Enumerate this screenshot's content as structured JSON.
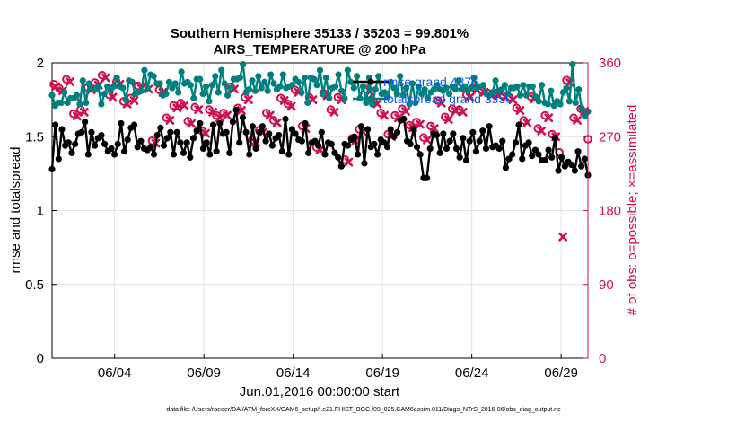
{
  "chart_data": {
    "type": "line",
    "title": "Southern Hemisphere 35133 / 35203 = 99.801%",
    "subtitle": "AIRS_TEMPERATURE @ 200 hPa",
    "xlabel": "Jun.01,2016 00:00:00 start",
    "ylabel": "rmse and totalspread",
    "ylabel_right": "# of obs: o=possible; ×=assimilated",
    "xlim": [
      0,
      30
    ],
    "ylim": [
      0,
      2
    ],
    "ylim_right": [
      0,
      360
    ],
    "x_ticks": [
      {
        "x": 3.5,
        "label": "06/04"
      },
      {
        "x": 8.5,
        "label": "06/09"
      },
      {
        "x": 13.5,
        "label": "06/14"
      },
      {
        "x": 18.5,
        "label": "06/19"
      },
      {
        "x": 23.5,
        "label": "06/24"
      },
      {
        "x": 28.5,
        "label": "06/29"
      }
    ],
    "y_ticks": [
      "0",
      "0.5",
      "1",
      "1.5",
      "2"
    ],
    "y_ticks_right": [
      "0",
      "90",
      "180",
      "270",
      "360"
    ],
    "grid": true,
    "legend_position": "top-right",
    "series": [
      {
        "name": "rmse grand   4375",
        "color": "#000000",
        "axis": "left",
        "marker": "circle",
        "values": [
          1.28,
          1.58,
          1.35,
          1.55,
          1.44,
          1.46,
          1.39,
          1.45,
          1.52,
          1.53,
          1.6,
          1.38,
          1.53,
          1.44,
          1.49,
          1.51,
          1.45,
          1.4,
          1.42,
          1.38,
          1.45,
          1.59,
          1.4,
          1.48,
          1.56,
          1.58,
          1.43,
          1.47,
          1.42,
          1.41,
          1.43,
          1.38,
          1.51,
          1.56,
          1.44,
          1.49,
          1.53,
          1.38,
          1.53,
          1.46,
          1.39,
          1.46,
          1.36,
          1.49,
          1.54,
          1.59,
          1.42,
          1.46,
          1.38,
          1.58,
          1.4,
          1.59,
          1.52,
          1.53,
          1.39,
          1.6,
          1.68,
          1.46,
          1.63,
          1.53,
          1.38,
          1.57,
          1.42,
          1.53,
          1.57,
          1.47,
          1.52,
          1.44,
          1.49,
          1.51,
          1.4,
          1.62,
          1.38,
          1.55,
          1.52,
          1.48,
          1.47,
          1.59,
          1.39,
          1.46,
          1.47,
          1.44,
          1.53,
          1.38,
          1.46,
          1.45,
          1.39,
          1.36,
          1.3,
          1.45,
          1.44,
          1.48,
          1.5,
          1.38,
          1.57,
          1.32,
          1.55,
          1.43,
          1.45,
          1.38,
          1.48,
          1.46,
          1.43,
          1.55,
          1.5,
          1.53,
          1.61,
          1.62,
          1.47,
          1.45,
          1.55,
          1.43,
          1.38,
          1.22,
          1.22,
          1.42,
          1.52,
          1.51,
          1.39,
          1.52,
          1.42,
          1.47,
          1.52,
          1.42,
          1.36,
          1.49,
          1.34,
          1.47,
          1.53,
          1.4,
          1.47,
          1.54,
          1.42,
          1.57,
          1.43,
          1.44,
          1.42,
          1.47,
          1.29,
          1.35,
          1.38,
          1.46,
          1.58,
          1.35,
          1.44,
          1.46,
          1.37,
          1.41,
          1.38,
          1.34,
          1.34,
          1.41,
          1.36,
          1.49,
          1.27,
          1.36,
          1.3,
          1.33,
          1.31,
          1.27,
          1.4,
          1.3,
          1.35,
          1.24
        ]
      },
      {
        "name": "totalspread grand   3350",
        "color": "#007f7f",
        "axis": "left",
        "marker": "circle",
        "values": [
          1.78,
          1.71,
          1.73,
          1.73,
          1.8,
          1.73,
          1.76,
          1.76,
          1.78,
          1.72,
          1.88,
          1.73,
          1.86,
          1.82,
          1.82,
          1.84,
          1.72,
          1.79,
          1.84,
          1.81,
          1.84,
          1.9,
          1.84,
          1.83,
          1.75,
          1.88,
          1.87,
          1.79,
          1.8,
          1.81,
          1.95,
          1.83,
          1.92,
          1.91,
          1.86,
          1.86,
          1.78,
          1.79,
          1.87,
          1.83,
          1.86,
          1.8,
          1.94,
          1.86,
          1.87,
          1.85,
          1.76,
          1.89,
          1.89,
          1.79,
          1.84,
          1.74,
          1.85,
          1.91,
          1.8,
          1.95,
          1.86,
          1.78,
          1.83,
          1.89,
          1.89,
          1.9,
          1.99,
          1.8,
          1.82,
          1.88,
          1.81,
          1.91,
          1.83,
          1.87,
          1.81,
          1.92,
          1.86,
          1.82,
          1.84,
          1.92,
          1.83,
          1.84,
          1.85,
          1.89,
          1.87,
          1.8,
          1.9,
          1.73,
          1.9,
          1.89,
          1.85,
          1.95,
          1.79,
          1.9,
          1.76,
          1.83,
          1.84,
          1.92,
          1.81,
          1.76,
          1.95,
          1.87,
          1.83,
          1.91,
          1.76,
          1.84,
          1.73,
          1.9,
          1.72,
          1.82,
          1.91,
          1.79,
          1.8,
          1.77,
          1.87,
          1.83,
          1.79,
          1.91,
          1.78,
          1.83,
          1.72,
          1.86,
          1.73,
          1.84,
          1.79,
          1.82,
          1.76,
          1.8,
          1.82,
          1.85,
          1.82,
          1.81,
          1.83,
          1.79,
          1.84,
          1.82,
          1.88,
          1.82,
          1.84,
          1.81,
          1.83,
          1.9,
          1.83,
          1.84,
          1.85,
          1.79,
          1.78,
          1.8,
          1.88,
          1.81,
          1.82,
          1.85,
          1.79,
          1.83,
          1.83,
          1.84,
          1.78,
          1.85,
          1.78,
          1.84,
          1.84,
          1.77,
          1.74,
          1.85,
          1.73,
          1.72,
          1.81,
          1.71,
          1.74,
          1.72,
          1.8,
          1.83,
          1.74,
          1.99,
          1.73,
          1.82,
          1.69,
          1.64,
          1.67
        ]
      },
      {
        "name": "possible",
        "color": "#d0104c",
        "axis": "right",
        "marker": "o",
        "x": [
          0.1,
          0.4,
          0.8,
          1.2,
          1.6,
          2.0,
          2.4,
          2.8,
          3.2,
          3.6,
          4.0,
          4.4,
          4.8,
          5.2,
          5.6,
          6.0,
          6.4,
          6.8,
          7.2,
          7.6,
          8.0,
          8.4,
          8.8,
          9.2,
          9.6,
          10.0,
          10.4,
          10.8,
          11.2,
          11.6,
          12.0,
          12.4,
          12.8,
          13.2,
          13.6,
          14.0,
          14.4,
          14.8,
          15.2,
          15.6,
          16.0,
          16.4,
          16.8,
          17.2,
          17.6,
          18.0,
          18.4,
          18.8,
          19.2,
          19.6,
          20.0,
          20.4,
          20.8,
          21.2,
          21.6,
          22.0,
          22.4,
          22.8,
          23.2,
          23.6,
          24.0,
          24.4,
          24.8,
          25.2,
          25.6,
          26.0,
          26.4,
          26.8,
          27.2,
          27.6,
          28.0,
          28.4,
          28.8,
          29.2,
          29.6,
          30.0
        ],
        "values": [
          334,
          329,
          340,
          298,
          303,
          330,
          336,
          345,
          321,
          337,
          313,
          317,
          332,
          331,
          265,
          327,
          293,
          308,
          311,
          289,
          306,
          277,
          303,
          296,
          299,
          331,
          305,
          318,
          266,
          278,
          299,
          290,
          317,
          310,
          327,
          283,
          318,
          257,
          323,
          303,
          318,
          242,
          268,
          279,
          328,
          313,
          299,
          273,
          296,
          304,
          284,
          288,
          269,
          283,
          314,
          294,
          304,
          303,
          321,
          330,
          327,
          323,
          323,
          321,
          318,
          305,
          290,
          319,
          280,
          296,
          273,
          251,
          339,
          293,
          304,
          267
        ]
      },
      {
        "name": "assimilated",
        "color": "#d0104c",
        "axis": "right",
        "marker": "x",
        "x": [
          0.2,
          0.6,
          1.0,
          1.4,
          1.8,
          2.2,
          2.6,
          3.0,
          3.4,
          3.8,
          4.2,
          4.6,
          5.0,
          5.4,
          5.8,
          6.2,
          6.6,
          7.0,
          7.4,
          7.8,
          8.2,
          8.6,
          9.0,
          9.4,
          9.8,
          10.2,
          10.6,
          11.0,
          11.4,
          11.8,
          12.2,
          12.6,
          13.0,
          13.4,
          13.8,
          14.2,
          14.6,
          15.0,
          15.4,
          15.8,
          16.2,
          16.6,
          17.0,
          17.4,
          17.8,
          18.2,
          18.6,
          19.0,
          19.4,
          19.8,
          20.2,
          20.6,
          21.0,
          21.4,
          21.8,
          22.2,
          22.6,
          23.0,
          23.4,
          23.8,
          24.2,
          24.6,
          25.0,
          25.4,
          25.8,
          26.2,
          26.6,
          27.0,
          27.4,
          27.8,
          28.2,
          28.6,
          29.0,
          29.4,
          29.8
        ],
        "values": [
          331,
          326,
          337,
          295,
          300,
          327,
          333,
          342,
          318,
          334,
          310,
          314,
          329,
          328,
          262,
          324,
          290,
          305,
          308,
          286,
          303,
          274,
          300,
          293,
          296,
          328,
          302,
          315,
          263,
          275,
          296,
          287,
          314,
          307,
          324,
          280,
          315,
          254,
          320,
          300,
          315,
          239,
          265,
          276,
          325,
          310,
          296,
          270,
          293,
          301,
          281,
          285,
          266,
          280,
          311,
          291,
          301,
          300,
          318,
          327,
          324,
          320,
          320,
          318,
          315,
          302,
          287,
          316,
          277,
          293,
          270,
          148,
          336,
          290,
          301
        ]
      }
    ],
    "legend": [
      "rmse grand   4375",
      "totalspread grand   3350"
    ]
  },
  "footer": "data file: /Users/raeder/DAI/ATM_forcXX/CAM6_setup/f.e21.FHIST_BGC.f09_025.CAM6assim.011/Diags_NTrS_2016-06/obs_diag_output.nc"
}
